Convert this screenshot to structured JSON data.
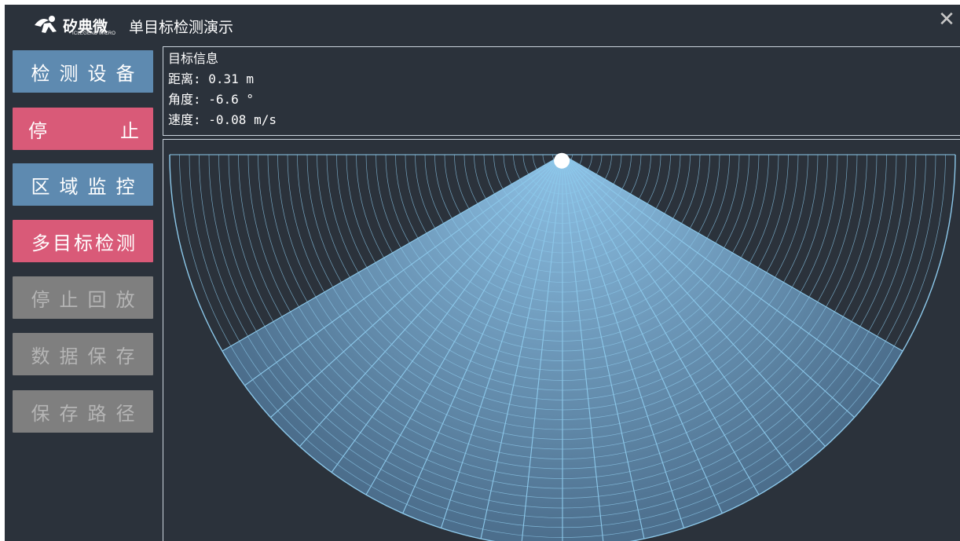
{
  "header": {
    "brand_cn": "矽典微",
    "brand_en": "ICLEGEND MICRO",
    "title": "单目标检测演示",
    "close_symbol": "✕"
  },
  "sidebar": {
    "buttons": [
      {
        "label": "检测设备",
        "color": "#5e8ab0",
        "enabled": true
      },
      {
        "label_left": "停",
        "label_right": "止",
        "color": "#d95a78",
        "enabled": true
      },
      {
        "label": "区域监控",
        "color": "#5e8ab0",
        "enabled": true
      },
      {
        "label": "多目标检测",
        "color": "#d95a78",
        "enabled": true
      },
      {
        "label": "停止回放",
        "color": "#7f7f7f",
        "enabled": false
      },
      {
        "label": "数据保存",
        "color": "#7f7f7f",
        "enabled": false
      },
      {
        "label": "保存路径",
        "color": "#7f7f7f",
        "enabled": false
      }
    ]
  },
  "target_info": {
    "heading": "目标信息",
    "distance": "距离: 0.31 m",
    "angle": "角度: -6.6 °",
    "speed": "速度: -0.08 m/s"
  },
  "radar": {
    "background": "#2b323b",
    "grid_color": "#8cc8ea",
    "fill_color_near": "#8ec2e6",
    "fill_color_far": "#4b6d8b",
    "target_color": "#ffffff",
    "target_distance_m": 0.31,
    "target_angle_deg": -6.6
  }
}
